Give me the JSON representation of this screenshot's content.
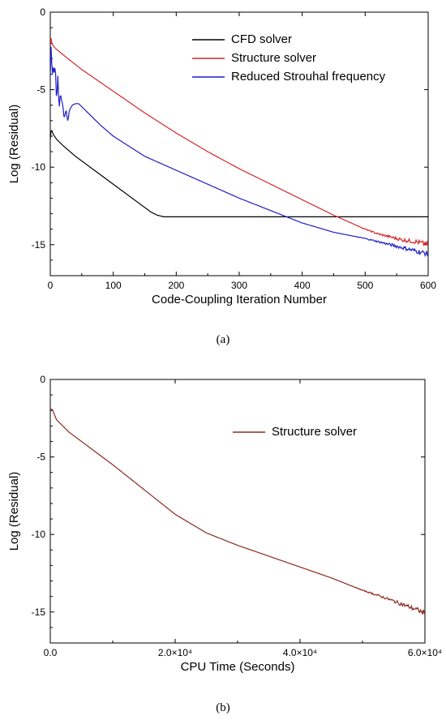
{
  "figure": {
    "caption_a": "(a)",
    "caption_b": "(b)"
  },
  "chart_data": [
    {
      "type": "line",
      "panel": "a",
      "xlabel": "Code-Coupling Iteration Number",
      "ylabel": "Log (Residual)",
      "xlim": [
        0,
        600
      ],
      "ylim": [
        -17,
        0
      ],
      "xticks": [
        0,
        100,
        200,
        300,
        400,
        500,
        600
      ],
      "xtick_labels": [
        "0",
        "100",
        "200",
        "300",
        "400",
        "500",
        "600"
      ],
      "yticks": [
        0,
        -5,
        -10,
        -15
      ],
      "ytick_labels": [
        "0",
        "-5",
        "-10",
        "-15"
      ],
      "grid": false,
      "legend_position": "top-right",
      "series": [
        {
          "name": "CFD solver",
          "color": "#000000",
          "x": [
            0,
            1,
            2,
            5,
            10,
            20,
            40,
            60,
            80,
            100,
            120,
            140,
            160,
            170,
            180,
            200,
            250,
            300,
            350,
            400,
            450,
            500,
            550,
            600
          ],
          "y": [
            -8.2,
            -7.7,
            -7.6,
            -7.9,
            -8.2,
            -8.6,
            -9.3,
            -9.9,
            -10.5,
            -11.1,
            -11.7,
            -12.3,
            -12.9,
            -13.1,
            -13.2,
            -13.2,
            -13.2,
            -13.2,
            -13.2,
            -13.2,
            -13.2,
            -13.2,
            -13.2,
            -13.2
          ]
        },
        {
          "name": "Structure solver",
          "color": "#d62728",
          "x": [
            0,
            1,
            2,
            5,
            10,
            25,
            50,
            75,
            100,
            150,
            200,
            250,
            300,
            350,
            400,
            450,
            500,
            520,
            540,
            560,
            580,
            590,
            600
          ],
          "y": [
            -2.0,
            -1.6,
            -2.0,
            -2.2,
            -2.4,
            -2.9,
            -3.7,
            -4.4,
            -5.1,
            -6.5,
            -7.8,
            -9.0,
            -10.1,
            -11.1,
            -12.1,
            -13.1,
            -14.0,
            -14.3,
            -14.5,
            -14.7,
            -14.8,
            -14.9,
            -15.0
          ]
        },
        {
          "name": "Reduced Strouhal frequency",
          "color": "#1f1fc8",
          "x": [
            0,
            1,
            2,
            3,
            4,
            5,
            6,
            8,
            10,
            12,
            14,
            16,
            18,
            20,
            22,
            25,
            28,
            30,
            32,
            35,
            40,
            45,
            50,
            60,
            80,
            100,
            150,
            200,
            250,
            300,
            350,
            400,
            450,
            500,
            520,
            540,
            560,
            580,
            590,
            600
          ],
          "y": [
            -4.2,
            -1.9,
            -3.6,
            -3.0,
            -4.6,
            -3.3,
            -3.9,
            -3.4,
            -5.9,
            -4.1,
            -6.3,
            -5.2,
            -5.7,
            -6.0,
            -6.9,
            -6.3,
            -7.1,
            -6.4,
            -6.2,
            -6.0,
            -5.9,
            -5.9,
            -6.1,
            -6.5,
            -7.3,
            -8.0,
            -9.3,
            -10.2,
            -11.1,
            -12.0,
            -12.8,
            -13.6,
            -14.2,
            -14.6,
            -14.8,
            -15.0,
            -15.2,
            -15.4,
            -15.5,
            -15.6
          ]
        }
      ]
    },
    {
      "type": "line",
      "panel": "b",
      "xlabel": "CPU Time (Seconds)",
      "ylabel": "Log (Residual)",
      "xlim": [
        0,
        60000
      ],
      "ylim": [
        -17,
        0
      ],
      "xticks": [
        0,
        20000,
        40000,
        60000
      ],
      "xtick_labels": [
        "0.0",
        "2.0×10⁴",
        "4.0×10⁴",
        "6.0×10⁴"
      ],
      "yticks": [
        0,
        -5,
        -10,
        -15
      ],
      "ytick_labels": [
        "0",
        "-5",
        "-10",
        "-15"
      ],
      "grid": false,
      "legend_position": "top-right",
      "series": [
        {
          "name": "Structure solver",
          "color": "#8b2a1e",
          "x": [
            0,
            300,
            1000,
            3000,
            5000,
            10000,
            15000,
            20000,
            25000,
            30000,
            35000,
            40000,
            45000,
            50000,
            53000,
            55000,
            57000,
            59000,
            60000
          ],
          "y": [
            -2.0,
            -1.9,
            -2.6,
            -3.4,
            -4.0,
            -5.5,
            -7.1,
            -8.7,
            -9.9,
            -10.7,
            -11.4,
            -12.1,
            -12.8,
            -13.6,
            -14.0,
            -14.3,
            -14.6,
            -14.9,
            -15.1
          ]
        }
      ]
    }
  ]
}
